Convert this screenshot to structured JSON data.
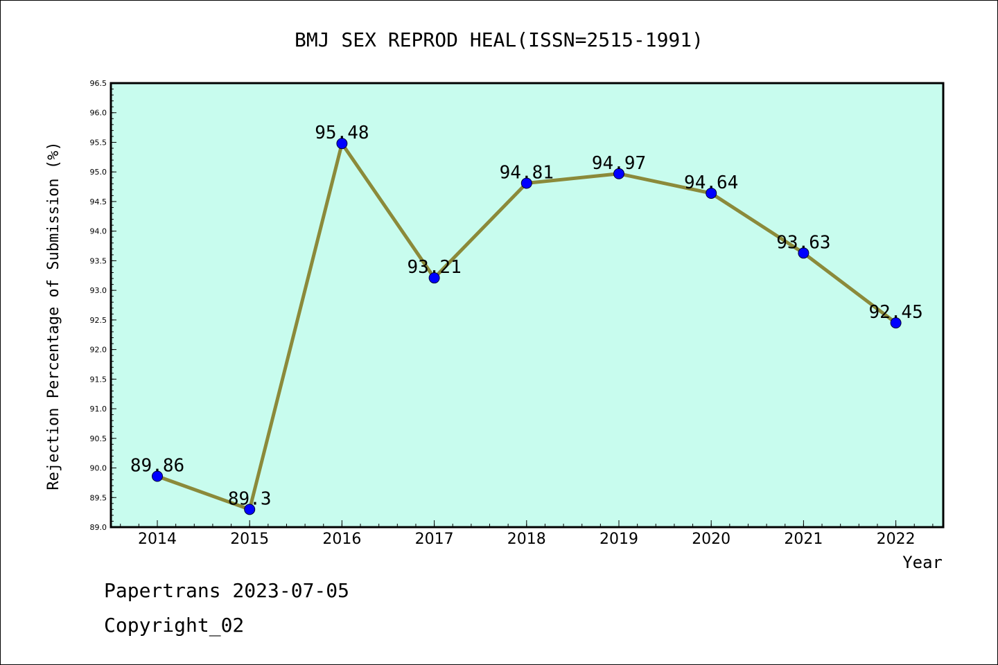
{
  "chart_data": {
    "type": "line",
    "title": "BMJ SEX REPROD HEAL(ISSN=2515-1991)",
    "xlabel": "Year",
    "ylabel": "Rejection Percentage of Submission (%)",
    "categories": [
      "2014",
      "2015",
      "2016",
      "2017",
      "2018",
      "2019",
      "2020",
      "2021",
      "2022"
    ],
    "values": [
      89.86,
      89.3,
      95.48,
      93.21,
      94.81,
      94.97,
      94.64,
      93.63,
      92.45
    ],
    "data_labels": [
      "89.86",
      "89.3",
      "95.48",
      "93.21",
      "94.81",
      "94.97",
      "94.64",
      "93.63",
      "92.45"
    ],
    "ylim": [
      89.0,
      96.5
    ],
    "yticks": [
      "89.0",
      "89.5",
      "90.0",
      "90.5",
      "91.0",
      "91.5",
      "92.0",
      "92.5",
      "93.0",
      "93.5",
      "94.0",
      "94.5",
      "95.0",
      "95.5",
      "96.0",
      "96.5"
    ],
    "grid": false,
    "colors": {
      "plot_background": "#c8fcee",
      "line": "#8b8a3a",
      "marker": "#0000ff"
    }
  },
  "footer": {
    "line1": "Papertrans 2023-07-05",
    "line2": "Copyright_02"
  }
}
